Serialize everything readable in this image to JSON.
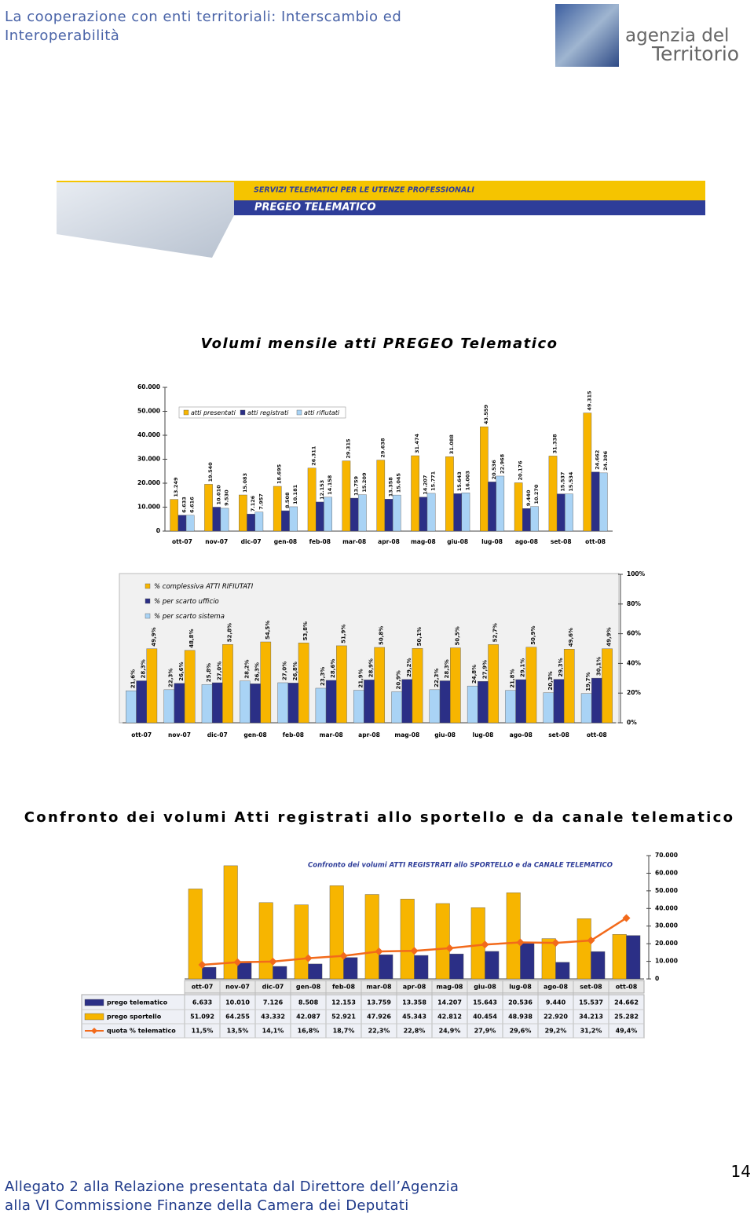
{
  "header": {
    "title": "La cooperazione con enti territoriali: Interscambio ed Interoperabilità"
  },
  "logo": {
    "line1": "agenzia del",
    "line2": "Territorio"
  },
  "banner": {
    "subtitle": "SERVIZI TELEMATICI PER LE UTENZE PROFESSIONALI",
    "title": "PREGEO TELEMATICO"
  },
  "headings": [
    "Volumi mensile atti PREGEO Telematico",
    "Confronto dei volumi Atti registrati allo sportello e da canale telematico"
  ],
  "chart_data": [
    {
      "type": "bar",
      "categories": [
        "ott-07",
        "nov-07",
        "dic-07",
        "gen-08",
        "feb-08",
        "mar-08",
        "apr-08",
        "mag-08",
        "giu-08",
        "lug-08",
        "ago-08",
        "set-08",
        "ott-08"
      ],
      "series": [
        {
          "name": "atti presentati",
          "color": "#f7b500",
          "values": [
            13249,
            19540,
            15083,
            18695,
            26311,
            29315,
            29638,
            31474,
            31088,
            43559,
            20176,
            31338,
            49315
          ],
          "value_labels": [
            "13.249",
            "19.540",
            "15.083",
            "18.695",
            "26.311",
            "29.315",
            "29.638",
            "31.474",
            "31.088",
            "43.559",
            "20.176",
            "31.338",
            "49.315"
          ]
        },
        {
          "name": "atti registrati",
          "color": "#2b2f86",
          "values": [
            6633,
            10010,
            7126,
            8508,
            12153,
            13759,
            13358,
            14207,
            15643,
            20536,
            9440,
            15537,
            24662
          ],
          "value_labels": [
            "6.633",
            "10.010",
            "7.126",
            "8.508",
            "12.153",
            "13.759",
            "13.358",
            "14.207",
            "15.643",
            "20.536",
            "9.440",
            "15.537",
            "24.662"
          ]
        },
        {
          "name": "atti rifiutati",
          "color": "#a9d3f5",
          "values": [
            6616,
            9530,
            7957,
            10181,
            14158,
            15209,
            15045,
            15771,
            16003,
            22968,
            10270,
            15534,
            24306
          ],
          "value_labels": [
            "6.616",
            "9.530",
            "7.957",
            "10.181",
            "14.158",
            "15.209",
            "15.045",
            "15.771",
            "16.003",
            "22.968",
            "10.270",
            "15.534",
            "24.306"
          ]
        }
      ],
      "ylim": [
        0,
        60000
      ],
      "yticks": [
        0,
        {
          "value": 10000,
          "label": "10.000"
        },
        {
          "value": 20000,
          "label": "20.000"
        },
        {
          "value": 30000,
          "label": "30.000"
        },
        {
          "value": 40000,
          "label": "40.000"
        },
        {
          "value": 50000,
          "label": "50.000"
        },
        {
          "value": 60000,
          "label": "60.000"
        }
      ],
      "grid": false,
      "legend": "top-left"
    },
    {
      "type": "bar",
      "categories": [
        "ott-07",
        "nov-07",
        "dic-07",
        "gen-08",
        "feb-08",
        "mar-08",
        "apr-08",
        "mag-08",
        "giu-08",
        "lug-08",
        "ago-08",
        "set-08",
        "ott-08"
      ],
      "series": [
        {
          "name": "% complessiva ATTI RIFIUTATI",
          "color": "#f7b500",
          "values": [
            49.9,
            48.8,
            52.8,
            54.5,
            53.8,
            51.9,
            50.8,
            50.1,
            50.5,
            52.7,
            50.9,
            49.6,
            49.9
          ],
          "value_labels": [
            "49,9%",
            "48,8%",
            "52,8%",
            "54,5%",
            "53,8%",
            "51,9%",
            "50,8%",
            "50,1%",
            "50,5%",
            "52,7%",
            "50,9%",
            "49,6%",
            "49,9%"
          ]
        },
        {
          "name": "% per scarto ufficio",
          "color": "#2b2f86",
          "values": [
            28.3,
            26.6,
            27.0,
            26.3,
            26.8,
            28.6,
            28.9,
            29.2,
            28.3,
            27.9,
            29.1,
            29.3,
            30.1
          ],
          "value_labels": [
            "28,3%",
            "26,6%",
            "27,0%",
            "26,3%",
            "26,8%",
            "28,6%",
            "28,9%",
            "29,2%",
            "28,3%",
            "27,9%",
            "29,1%",
            "29,3%",
            "30,1%"
          ]
        },
        {
          "name": "% per scarto sistema",
          "color": "#a9d3f5",
          "values": [
            21.6,
            22.3,
            25.8,
            28.2,
            27.0,
            23.3,
            21.9,
            20.9,
            22.3,
            24.8,
            21.8,
            20.3,
            19.7
          ],
          "value_labels": [
            "21,6%",
            "22,3%",
            "25,8%",
            "28,2%",
            "27,0%",
            "23,3%",
            "21,9%",
            "20,9%",
            "22,3%",
            "24,8%",
            "21,8%",
            "20,3%",
            "19,7%"
          ]
        }
      ],
      "ylim": [
        0,
        100
      ],
      "yticks": [
        {
          "value": 0,
          "label": "0%"
        },
        {
          "value": 20,
          "label": "20%"
        },
        {
          "value": 40,
          "label": "40%"
        },
        {
          "value": 60,
          "label": "60%"
        },
        {
          "value": 80,
          "label": "80%"
        },
        {
          "value": 100,
          "label": "100%"
        }
      ],
      "grid": false,
      "legend": "top-left",
      "y_axis_position": "right"
    },
    {
      "type": "combo",
      "title": "Confronto dei volumi ATTI REGISTRATI allo SPORTELLO e da CANALE TELEMATICO",
      "categories": [
        "ott-07",
        "nov-07",
        "dic-07",
        "gen-08",
        "feb-08",
        "mar-08",
        "apr-08",
        "mag-08",
        "giu-08",
        "lug-08",
        "ago-08",
        "set-08",
        "ott-08"
      ],
      "series": [
        {
          "name": "prego telematico",
          "color": "#2b2f86",
          "values": [
            6633,
            10010,
            7126,
            8508,
            12153,
            13759,
            13358,
            14207,
            15643,
            20536,
            9440,
            15537,
            24662
          ],
          "value_labels": [
            "6.633",
            "10.010",
            "7.126",
            "8.508",
            "12.153",
            "13.759",
            "13.358",
            "14.207",
            "15.643",
            "20.536",
            "9.440",
            "15.537",
            "24.662"
          ]
        },
        {
          "name": "prego sportello",
          "color": "#f7b500",
          "values": [
            51092,
            64255,
            43332,
            42087,
            52921,
            47926,
            45343,
            42812,
            40454,
            48938,
            22920,
            34213,
            25282
          ],
          "value_labels": [
            "51.092",
            "64.255",
            "43.332",
            "42.087",
            "52.921",
            "47.926",
            "45.343",
            "42.812",
            "40.454",
            "48.938",
            "22.920",
            "34.213",
            "25.282"
          ]
        },
        {
          "name": "quota % telematico",
          "color": "#f26a1b",
          "type": "line",
          "axis": "y2",
          "values": [
            11.5,
            13.5,
            14.1,
            16.8,
            18.7,
            22.3,
            22.8,
            24.9,
            27.9,
            29.6,
            29.2,
            31.2,
            49.4
          ],
          "value_labels": [
            "11,5%",
            "13,5%",
            "14,1%",
            "16,8%",
            "18,7%",
            "22,3%",
            "22,8%",
            "24,9%",
            "27,9%",
            "29,6%",
            "29,2%",
            "31,2%",
            "49,4%"
          ]
        }
      ],
      "ylim": [
        0,
        70000
      ],
      "yticks": [
        0,
        {
          "value": 10000,
          "label": "10.000"
        },
        {
          "value": 20000,
          "label": "20.000"
        },
        {
          "value": 30000,
          "label": "30.000"
        },
        {
          "value": 40000,
          "label": "40.000"
        },
        {
          "value": 50000,
          "label": "50.000"
        },
        {
          "value": 60000,
          "label": "60.000"
        },
        {
          "value": 70000,
          "label": "70.000"
        }
      ],
      "y2lim": [
        0,
        100
      ],
      "grid": false,
      "legend": "data-table",
      "y_axis_position": "right"
    }
  ],
  "footer": {
    "lines": [
      "Allegato 2 alla Relazione presentata dal Direttore dell’Agenzia",
      "alla VI Commissione Finanze della Camera dei Deputati"
    ],
    "page_number": 14
  }
}
